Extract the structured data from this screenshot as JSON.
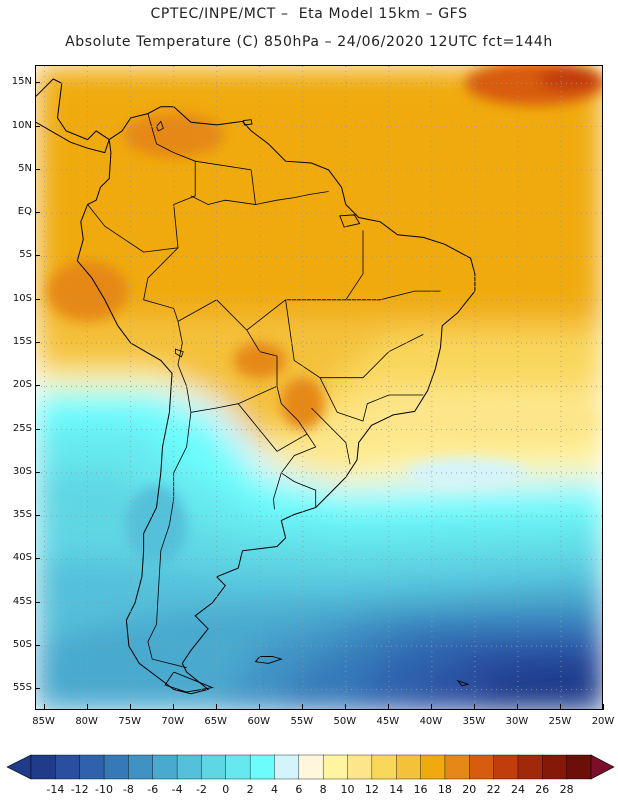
{
  "header": {
    "line1": "CPTEC/INPE/MCT –  Eta Model 15km – GFS",
    "line2": "Absolute Temperature (C) 850hPa – 24/06/2020 12UTC fct=144h"
  },
  "map": {
    "variable": "Absolute Temperature",
    "units": "C",
    "level": "850hPa",
    "lat_labels": [
      "15N",
      "10N",
      "5N",
      "EQ",
      "5S",
      "10S",
      "15S",
      "20S",
      "25S",
      "30S",
      "35S",
      "40S",
      "45S",
      "50S",
      "55S"
    ],
    "lat_values": [
      15,
      10,
      5,
      0,
      -5,
      -10,
      -15,
      -20,
      -25,
      -30,
      -35,
      -40,
      -45,
      -50,
      -55
    ],
    "lon_labels": [
      "85W",
      "80W",
      "75W",
      "70W",
      "65W",
      "60W",
      "55W",
      "50W",
      "45W",
      "40W",
      "35W",
      "30W",
      "25W",
      "20W"
    ],
    "lon_values": [
      -85,
      -80,
      -75,
      -70,
      -65,
      -60,
      -55,
      -50,
      -45,
      -40,
      -35,
      -30,
      -25,
      -20
    ],
    "extent": {
      "lon_min": -86,
      "lon_max": -20,
      "lat_min": -57.5,
      "lat_max": 17
    }
  },
  "colorbar": {
    "labels": [
      "-14",
      "-12",
      "-10",
      "-8",
      "-6",
      "-4",
      "-2",
      "0",
      "2",
      "4",
      "6",
      "8",
      "10",
      "12",
      "14",
      "16",
      "18",
      "20",
      "22",
      "24",
      "26",
      "28"
    ],
    "colors": [
      "#1f3b8a",
      "#2b4ea0",
      "#2f62ad",
      "#3579b9",
      "#3f92c4",
      "#4aa9cf",
      "#55c0da",
      "#5fd6e4",
      "#66e8ee",
      "#6cfcfc",
      "#d4f4fb",
      "#fff6dc",
      "#fff5a0",
      "#fde68a",
      "#f9d75b",
      "#f4c13a",
      "#f0aa10",
      "#e68818",
      "#d85c10",
      "#c13d0c",
      "#a2280a",
      "#86180a",
      "#6a1008"
    ],
    "under_color": "#1f3b8a",
    "over_color": "#7a0f2a"
  }
}
